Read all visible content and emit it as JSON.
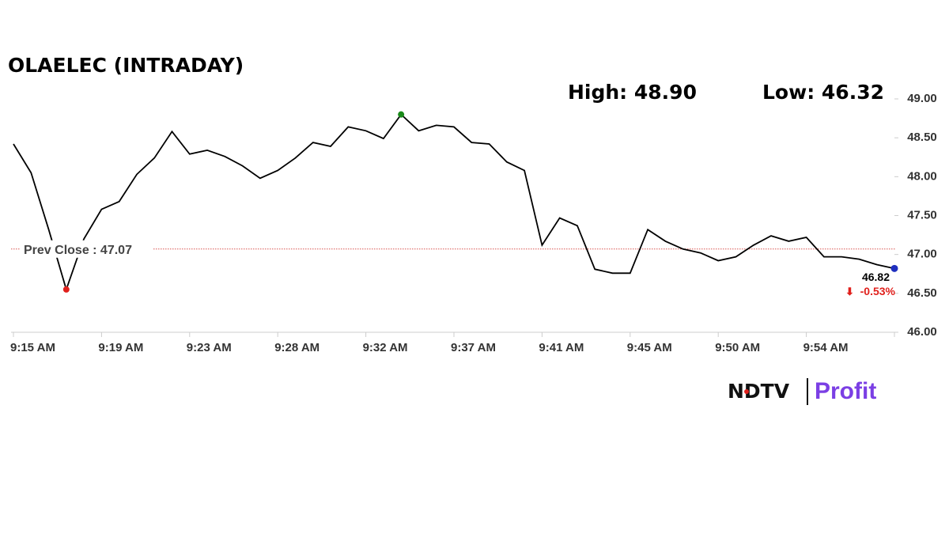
{
  "chart_data": {
    "type": "line",
    "title": "OLAELEC (INTRADAY)",
    "high_label": "High: 48.90",
    "low_label": "Low: 46.32",
    "categories": [
      "9:15 AM",
      null,
      null,
      null,
      null,
      "9:19 AM",
      null,
      null,
      null,
      null,
      "9:23 AM",
      null,
      null,
      null,
      null,
      "9:28 AM",
      null,
      null,
      null,
      null,
      "9:32 AM",
      null,
      null,
      null,
      null,
      "9:37 AM",
      null,
      null,
      null,
      null,
      "9:41 AM",
      null,
      null,
      null,
      null,
      "9:45 AM",
      null,
      null,
      null,
      null,
      "9:50 AM",
      null,
      null,
      null,
      null,
      "9:54 AM",
      null,
      null,
      null,
      null,
      null
    ],
    "values": [
      48.42,
      48.05,
      47.32,
      46.55,
      47.2,
      47.58,
      47.68,
      48.03,
      48.24,
      48.58,
      48.29,
      48.34,
      48.26,
      48.14,
      47.98,
      48.08,
      48.24,
      48.44,
      48.39,
      48.64,
      48.59,
      48.49,
      48.8,
      48.59,
      48.66,
      48.64,
      48.44,
      48.42,
      48.19,
      48.08,
      47.12,
      47.47,
      47.37,
      46.81,
      46.76,
      46.76,
      47.32,
      47.17,
      47.07,
      47.02,
      46.92,
      46.97,
      47.12,
      47.24,
      47.17,
      47.22,
      46.97,
      46.97,
      46.94,
      46.87,
      46.82
    ],
    "color": "#000000",
    "high_color": "#1a8a1a",
    "low_color": "#e0201c",
    "last_color": "#1f2fbf",
    "prev_close": {
      "value": 47.07,
      "label": "Prev Close : 47.07",
      "color": "#d9534f"
    },
    "last_label": "46.82",
    "change_label": "-0.53%",
    "change_color": "#e0201c",
    "ylim": [
      46,
      49
    ],
    "yticks": [
      {
        "value": 46,
        "label": "46.00"
      },
      {
        "value": 46.5,
        "label": "46.50"
      },
      {
        "value": 47,
        "label": "47.00"
      },
      {
        "value": 47.5,
        "label": "47.50"
      },
      {
        "value": 48,
        "label": "48.00"
      },
      {
        "value": 48.5,
        "label": "48.50"
      },
      {
        "value": 49,
        "label": "49.00"
      }
    ],
    "brand": {
      "name": "NDTV",
      "product": "Profit"
    }
  }
}
